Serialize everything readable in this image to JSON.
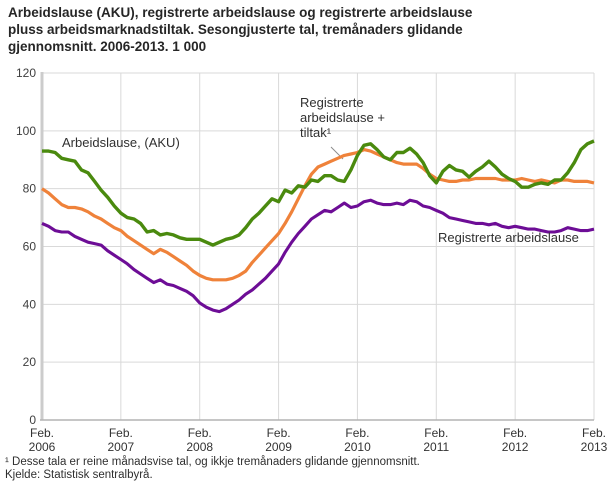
{
  "title_lines": [
    "Arbeidslause (AKU), registrerte arbeidslause og registrerte arbeidslause",
    "pluss arbeidsmarknadstiltak. Sesongjusterte tal, tremånaders glidande",
    "gjennomsnitt. 2006-2013. 1 000"
  ],
  "annotations": {
    "aku_label": "Arbeidslause, (AKU)",
    "reg_tiltak_label": "Registrerte arbeidslause + tiltak¹",
    "reg_label": "Registrerte arbeidslause"
  },
  "footnotes": {
    "note1": "¹ Desse tala er reine månadsvise tal, og ikkje tremånaders glidande gjennomsnitt.",
    "source": "Kjelde: Statistisk sentralbyrå."
  },
  "colors": {
    "aku": "#4a8a0e",
    "reg_tiltak": "#ef823a",
    "reg": "#6d0d96",
    "grid": "#d9d9d9",
    "axis": "#b3b3b3",
    "axis_band": "#cccccc",
    "annotation_line": "#8c8c8c",
    "tick_text": "#3f3f3f"
  },
  "chart_data": {
    "type": "line",
    "title": "Arbeidslause (AKU), registrerte arbeidslause og registrerte arbeidslause pluss arbeidsmarknadstiltak. Sesongjusterte tal, tremånaders glidande gjennomsnitt. 2006-2013. 1 000",
    "unit": "1 000",
    "x_unit": "monthly",
    "x_start": "2006-02",
    "x_end": "2013-02",
    "grid": true,
    "legend_position": "inline-annotations",
    "ylim": [
      0,
      120
    ],
    "y_ticks": [
      0,
      20,
      40,
      60,
      80,
      100,
      120
    ],
    "x_ticks": [
      {
        "top": "Feb.",
        "bottom": "2006"
      },
      {
        "top": "Feb.",
        "bottom": "2007"
      },
      {
        "top": "Feb.",
        "bottom": "2008"
      },
      {
        "top": "Feb.",
        "bottom": "2009"
      },
      {
        "top": "Feb.",
        "bottom": "2010"
      },
      {
        "top": "Feb.",
        "bottom": "2011"
      },
      {
        "top": "Feb.",
        "bottom": "2012"
      },
      {
        "top": "Feb.",
        "bottom": "2013"
      }
    ],
    "series": [
      {
        "name": "Registrerte arbeidslause",
        "color_key": "reg",
        "stroke_width": 3.1,
        "values": [
          68,
          67,
          65.5,
          65,
          65,
          63.5,
          62.5,
          61.5,
          61,
          60.5,
          58.5,
          57,
          55.5,
          54,
          52,
          50.5,
          49,
          47.5,
          48.5,
          47,
          46.5,
          45.5,
          44.5,
          43,
          40.5,
          39,
          38,
          37.5,
          38.5,
          40,
          41.5,
          43.5,
          45,
          47,
          49,
          51.5,
          54,
          58,
          61.5,
          64.5,
          67,
          69.5,
          71,
          72.5,
          72,
          73.5,
          75,
          73.5,
          74,
          75.5,
          76,
          75,
          74.5,
          74.5,
          75,
          74.5,
          76,
          75.5,
          74,
          73.5,
          72.5,
          71.5,
          70,
          69.5,
          69,
          68.5,
          68,
          68,
          67.5,
          68,
          67,
          66.5,
          67,
          66.5,
          66,
          66,
          65.5,
          65,
          65,
          65.5,
          66.5,
          66,
          65.5,
          65.5,
          66
        ]
      },
      {
        "name": "Registrerte arbeidslause + tiltak",
        "color_key": "reg_tiltak",
        "stroke_width": 3.2,
        "values": [
          80,
          78.5,
          76.5,
          74.5,
          73.5,
          73.5,
          73,
          72,
          70.5,
          69.5,
          68,
          66.5,
          65.5,
          63.5,
          62,
          60.5,
          59,
          57.5,
          59,
          58,
          56.5,
          55,
          53.5,
          51.5,
          50,
          49,
          48.5,
          48.5,
          48.5,
          49,
          50,
          51.5,
          54.5,
          57,
          59.5,
          62,
          64.5,
          68,
          72,
          76.5,
          81,
          85,
          87.5,
          88.5,
          89.5,
          90.5,
          91.5,
          92,
          92.5,
          93.5,
          93,
          92,
          91,
          90,
          89,
          88.5,
          88.5,
          88.5,
          87,
          85,
          83.5,
          83,
          82.5,
          82.5,
          83,
          83,
          83.5,
          83.5,
          83.5,
          83.5,
          83,
          83,
          83,
          83.5,
          83,
          82.5,
          83,
          82.5,
          82,
          83,
          83,
          82.5,
          82.5,
          82.5,
          82
        ]
      },
      {
        "name": "Arbeidslause (AKU)",
        "color_key": "aku",
        "stroke_width": 3.4,
        "values": [
          93,
          93,
          92.5,
          90.5,
          90,
          89.5,
          86.5,
          85.5,
          82.5,
          79.5,
          77,
          74,
          71.5,
          70,
          69.5,
          68,
          65,
          65.5,
          64,
          64.5,
          64,
          63,
          62.5,
          62.5,
          62.5,
          61.5,
          60.5,
          61.5,
          62.5,
          63,
          64,
          66.5,
          69.5,
          71.5,
          74,
          76.5,
          75.5,
          79.5,
          78.5,
          81,
          80.5,
          83,
          82.5,
          84.5,
          84.5,
          83,
          82.5,
          86.5,
          91.5,
          95,
          95.5,
          93.5,
          91,
          90,
          92.5,
          92.5,
          94,
          92,
          89,
          84.5,
          82,
          86,
          88,
          86.5,
          86,
          84,
          86,
          87.5,
          89.5,
          87.5,
          85,
          83.5,
          82.5,
          80.5,
          80.5,
          81.5,
          82,
          81.5,
          83,
          83,
          85.5,
          89,
          93.5,
          95.5,
          96.5
        ]
      }
    ]
  }
}
